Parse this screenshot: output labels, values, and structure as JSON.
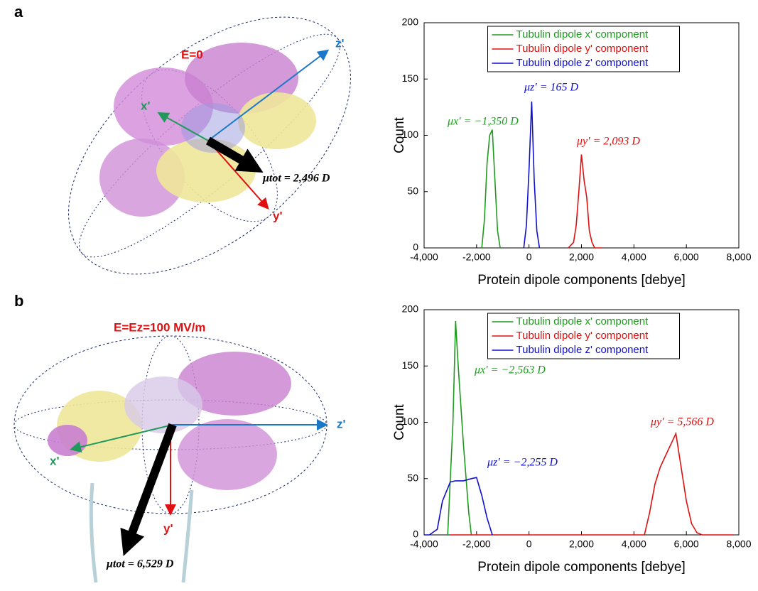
{
  "panel_a": {
    "label": "a",
    "field": "E=0",
    "x_axis": "x'",
    "y_axis": "y'",
    "z_axis": "z'",
    "total": "μtot = 2,496 D"
  },
  "panel_b": {
    "label": "b",
    "field": "E=Ez=100 MV/m",
    "x_axis": "x'",
    "y_axis": "y'",
    "z_axis": "z'",
    "total": "μtot = 6,529 D"
  },
  "chart_data": [
    {
      "type": "line",
      "xlabel": "Protein dipole components [debye]",
      "ylabel": "Count",
      "legend": "top",
      "xlim": [
        -4000,
        8000
      ],
      "ylim": [
        0,
        200
      ],
      "xticks": [
        {
          "value": -4000,
          "label": "-4,000"
        },
        {
          "value": -2000,
          "label": "-2,000"
        },
        0,
        {
          "value": 2000,
          "label": "2,000"
        },
        {
          "value": 4000,
          "label": "4,000"
        },
        {
          "value": 6000,
          "label": "6,000"
        },
        {
          "value": 8000,
          "label": "8,000"
        }
      ],
      "yticks": [
        0,
        50,
        100,
        150,
        200
      ],
      "annotations": [
        "μx′ = −1,350 D",
        "μz′ = 165 D",
        "μy′ = 2,093 D"
      ],
      "series": [
        {
          "name": "Tubulin dipole x' component",
          "color": "#1f9a1f",
          "x": [
            -1800,
            -1700,
            -1600,
            -1500,
            -1400,
            -1300,
            -1200,
            -1100
          ],
          "values": [
            0,
            25,
            75,
            100,
            105,
            60,
            15,
            0
          ]
        },
        {
          "name": "Tubulin dipole y' component",
          "color": "#e01010",
          "x": [
            1500,
            1700,
            1800,
            1900,
            2000,
            2100,
            2200,
            2300,
            2400,
            2500,
            2800
          ],
          "values": [
            0,
            5,
            20,
            50,
            83,
            60,
            45,
            15,
            5,
            0,
            0
          ]
        },
        {
          "name": "Tubulin dipole z' component",
          "color": "#1010d0",
          "x": [
            -200,
            -100,
            0,
            100,
            200,
            300,
            400
          ],
          "values": [
            0,
            20,
            70,
            130,
            60,
            15,
            0
          ]
        }
      ]
    },
    {
      "type": "line",
      "xlabel": "Protein dipole components [debye]",
      "ylabel": "Count",
      "legend": "top",
      "xlim": [
        -4000,
        8000
      ],
      "ylim": [
        0,
        200
      ],
      "xticks": [
        {
          "value": -4000,
          "label": "-4,000"
        },
        {
          "value": -2000,
          "label": "-2,000"
        },
        0,
        {
          "value": 2000,
          "label": "2,000"
        },
        {
          "value": 4000,
          "label": "4,000"
        },
        {
          "value": 6000,
          "label": "6,000"
        },
        {
          "value": 8000,
          "label": "8,000"
        }
      ],
      "yticks": [
        0,
        50,
        100,
        150,
        200
      ],
      "annotations": [
        "μx′ = −2,563 D",
        "μz′ = −2,255 D",
        "μy′ = 5,566 D"
      ],
      "series": [
        {
          "name": "Tubulin dipole x' component",
          "color": "#1f9a1f",
          "x": [
            -3100,
            -2900,
            -2800,
            -2700,
            -2500,
            -2300,
            -2200
          ],
          "values": [
            0,
            100,
            190,
            150,
            80,
            20,
            0
          ]
        },
        {
          "name": "Tubulin dipole y' component",
          "color": "#e01010",
          "x": [
            -3000,
            4400,
            4600,
            4800,
            5000,
            5200,
            5400,
            5600,
            5800,
            6000,
            6200,
            6400,
            6600,
            7800
          ],
          "values": [
            0,
            0,
            20,
            45,
            60,
            70,
            80,
            90,
            60,
            30,
            10,
            2,
            0,
            0
          ]
        },
        {
          "name": "Tubulin dipole z' component",
          "color": "#1010d0",
          "x": [
            -4000,
            -3800,
            -3500,
            -3300,
            -3000,
            -2800,
            -2500,
            -2200,
            -2000,
            -1800,
            -1600,
            -1400
          ],
          "values": [
            0,
            0,
            5,
            30,
            47,
            48,
            48,
            50,
            51,
            35,
            15,
            0
          ]
        }
      ]
    }
  ]
}
